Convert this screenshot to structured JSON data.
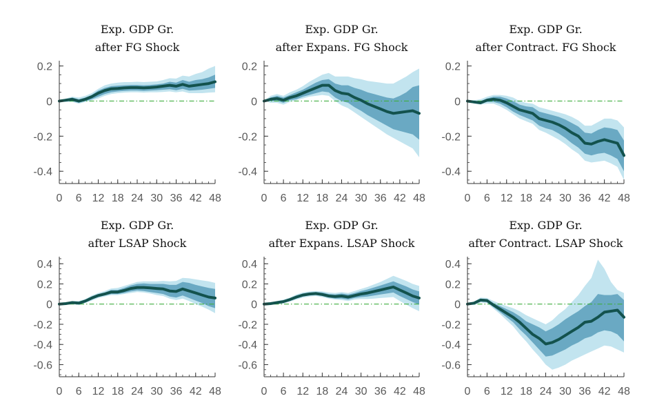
{
  "colors": {
    "outer_band": "#c2e4ef",
    "inner_band": "#6aa9c3",
    "median_line": "#13524d",
    "zero_line": "#3fae3f",
    "axis": "#333333",
    "tick_text": "#595959"
  },
  "chart_data": [
    {
      "type": "line",
      "title": [
        "Exp. GDP Gr.",
        "after FG Shock"
      ],
      "x": [
        0,
        2,
        4,
        6,
        8,
        10,
        12,
        14,
        16,
        18,
        20,
        22,
        24,
        26,
        28,
        30,
        32,
        34,
        36,
        38,
        40,
        42,
        44,
        46,
        48
      ],
      "median": [
        0,
        0.005,
        0.01,
        0,
        0.01,
        0.025,
        0.045,
        0.06,
        0.07,
        0.072,
        0.075,
        0.077,
        0.077,
        0.075,
        0.077,
        0.08,
        0.085,
        0.09,
        0.085,
        0.095,
        0.085,
        0.09,
        0.095,
        0.1,
        0.11
      ],
      "inner": {
        "lo": [
          0,
          0,
          0,
          -0.01,
          0,
          0.01,
          0.025,
          0.04,
          0.05,
          0.055,
          0.058,
          0.06,
          0.06,
          0.058,
          0.06,
          0.062,
          0.065,
          0.068,
          0.062,
          0.07,
          0.06,
          0.062,
          0.065,
          0.07,
          0.075
        ],
        "hi": [
          0,
          0.01,
          0.02,
          0.01,
          0.02,
          0.035,
          0.06,
          0.075,
          0.085,
          0.088,
          0.09,
          0.092,
          0.092,
          0.09,
          0.092,
          0.095,
          0.1,
          0.11,
          0.105,
          0.12,
          0.11,
          0.12,
          0.125,
          0.135,
          0.15
        ]
      },
      "outer": {
        "lo": [
          0,
          -0.005,
          -0.005,
          -0.015,
          -0.005,
          0.005,
          0.015,
          0.03,
          0.04,
          0.045,
          0.048,
          0.05,
          0.05,
          0.048,
          0.05,
          0.05,
          0.052,
          0.055,
          0.05,
          0.055,
          0.045,
          0.045,
          0.045,
          0.048,
          0.05
        ],
        "hi": [
          0,
          0.015,
          0.025,
          0.02,
          0.03,
          0.045,
          0.07,
          0.09,
          0.1,
          0.105,
          0.108,
          0.108,
          0.11,
          0.108,
          0.11,
          0.112,
          0.12,
          0.13,
          0.128,
          0.145,
          0.14,
          0.155,
          0.165,
          0.185,
          0.2
        ]
      },
      "ylim": [
        -0.47,
        0.23
      ],
      "yticks": [
        0.2,
        0,
        -0.2,
        -0.4
      ],
      "ytick_labels": [
        "0.2",
        "0",
        "-0.2",
        "-0.4"
      ],
      "yminor_step": 0.05,
      "xlim": [
        0,
        48
      ],
      "xticks": [
        0,
        6,
        12,
        18,
        24,
        30,
        36,
        42,
        48
      ],
      "xtick_labels": [
        "0",
        "6",
        "12",
        "18",
        "24",
        "30",
        "36",
        "42",
        "48"
      ]
    },
    {
      "type": "line",
      "title": [
        "Exp. GDP Gr.",
        "after Expans. FG Shock"
      ],
      "x": [
        0,
        2,
        4,
        6,
        8,
        10,
        12,
        14,
        16,
        18,
        20,
        22,
        24,
        26,
        28,
        30,
        32,
        34,
        36,
        38,
        40,
        42,
        44,
        46,
        48
      ],
      "median": [
        0,
        0.01,
        0.015,
        0.005,
        0.02,
        0.03,
        0.045,
        0.06,
        0.075,
        0.09,
        0.09,
        0.06,
        0.045,
        0.04,
        0.02,
        0.005,
        -0.015,
        -0.03,
        -0.045,
        -0.06,
        -0.07,
        -0.065,
        -0.06,
        -0.055,
        -0.07
      ],
      "inner": {
        "lo": [
          0,
          0,
          0,
          -0.01,
          0.005,
          0.01,
          0.025,
          0.035,
          0.045,
          0.055,
          0.05,
          0.02,
          0,
          -0.01,
          -0.035,
          -0.055,
          -0.08,
          -0.1,
          -0.12,
          -0.14,
          -0.16,
          -0.17,
          -0.18,
          -0.19,
          -0.22
        ],
        "hi": [
          0,
          0.02,
          0.03,
          0.02,
          0.035,
          0.05,
          0.065,
          0.085,
          0.105,
          0.12,
          0.125,
          0.1,
          0.09,
          0.09,
          0.075,
          0.065,
          0.05,
          0.04,
          0.03,
          0.02,
          0.015,
          0.03,
          0.05,
          0.08,
          0.09
        ]
      },
      "outer": {
        "lo": [
          0,
          -0.01,
          -0.01,
          -0.02,
          -0.005,
          0.005,
          0.015,
          0.025,
          0.03,
          0.035,
          0.03,
          0,
          -0.025,
          -0.04,
          -0.065,
          -0.09,
          -0.115,
          -0.14,
          -0.165,
          -0.19,
          -0.21,
          -0.23,
          -0.25,
          -0.27,
          -0.32
        ],
        "hi": [
          0,
          0.03,
          0.04,
          0.03,
          0.05,
          0.065,
          0.085,
          0.11,
          0.13,
          0.15,
          0.16,
          0.14,
          0.14,
          0.14,
          0.13,
          0.125,
          0.115,
          0.11,
          0.105,
          0.1,
          0.1,
          0.12,
          0.14,
          0.165,
          0.185
        ]
      },
      "ylim": [
        -0.47,
        0.23
      ],
      "yticks": [
        0.2,
        0,
        -0.2,
        -0.4
      ],
      "ytick_labels": [
        "0.2",
        "0",
        "-0.2",
        "-0.4"
      ],
      "yminor_step": 0.05,
      "xlim": [
        0,
        48
      ],
      "xticks": [
        0,
        6,
        12,
        18,
        24,
        30,
        36,
        42,
        48
      ],
      "xtick_labels": [
        "0",
        "6",
        "12",
        "18",
        "24",
        "30",
        "36",
        "42",
        "48"
      ]
    },
    {
      "type": "line",
      "title": [
        "Exp. GDP Gr.",
        "after Contract. FG Shock"
      ],
      "x": [
        0,
        2,
        4,
        6,
        8,
        10,
        12,
        14,
        16,
        18,
        20,
        22,
        24,
        26,
        28,
        30,
        32,
        34,
        36,
        38,
        40,
        42,
        44,
        46,
        48
      ],
      "median": [
        0,
        -0.005,
        -0.01,
        0.005,
        0.01,
        0.005,
        -0.01,
        -0.03,
        -0.05,
        -0.06,
        -0.07,
        -0.1,
        -0.11,
        -0.12,
        -0.135,
        -0.155,
        -0.18,
        -0.2,
        -0.24,
        -0.245,
        -0.23,
        -0.22,
        -0.23,
        -0.24,
        -0.31
      ],
      "inner": {
        "lo": [
          0,
          -0.01,
          -0.015,
          -0.005,
          -0.005,
          -0.015,
          -0.035,
          -0.06,
          -0.08,
          -0.095,
          -0.11,
          -0.14,
          -0.155,
          -0.165,
          -0.185,
          -0.21,
          -0.24,
          -0.265,
          -0.3,
          -0.31,
          -0.3,
          -0.295,
          -0.31,
          -0.33,
          -0.4
        ],
        "hi": [
          0,
          0,
          0,
          0.015,
          0.025,
          0.025,
          0.015,
          0,
          -0.02,
          -0.03,
          -0.035,
          -0.06,
          -0.07,
          -0.08,
          -0.09,
          -0.105,
          -0.125,
          -0.145,
          -0.18,
          -0.185,
          -0.165,
          -0.15,
          -0.155,
          -0.165,
          -0.225
        ]
      },
      "outer": {
        "lo": [
          0,
          -0.015,
          -0.02,
          -0.015,
          -0.015,
          -0.03,
          -0.05,
          -0.075,
          -0.1,
          -0.115,
          -0.13,
          -0.165,
          -0.18,
          -0.2,
          -0.22,
          -0.245,
          -0.275,
          -0.3,
          -0.34,
          -0.35,
          -0.345,
          -0.34,
          -0.355,
          -0.375,
          -0.45
        ],
        "hi": [
          0,
          0.005,
          0.01,
          0.025,
          0.035,
          0.035,
          0.03,
          0.02,
          0,
          -0.01,
          -0.015,
          -0.035,
          -0.045,
          -0.055,
          -0.065,
          -0.075,
          -0.09,
          -0.11,
          -0.14,
          -0.14,
          -0.12,
          -0.1,
          -0.1,
          -0.11,
          -0.15
        ]
      },
      "ylim": [
        -0.47,
        0.23
      ],
      "yticks": [
        0.2,
        0,
        -0.2,
        -0.4
      ],
      "ytick_labels": [
        "0.2",
        "0",
        "-0.2",
        "-0.4"
      ],
      "yminor_step": 0.05,
      "xlim": [
        0,
        48
      ],
      "xticks": [
        0,
        6,
        12,
        18,
        24,
        30,
        36,
        42,
        48
      ],
      "xtick_labels": [
        "0",
        "6",
        "12",
        "18",
        "24",
        "30",
        "36",
        "42",
        "48"
      ]
    },
    {
      "type": "line",
      "title": [
        "Exp. GDP Gr.",
        "after LSAP Shock"
      ],
      "x": [
        0,
        2,
        4,
        6,
        8,
        10,
        12,
        14,
        16,
        18,
        20,
        22,
        24,
        26,
        28,
        30,
        32,
        34,
        36,
        38,
        40,
        42,
        44,
        46,
        48
      ],
      "median": [
        0,
        0.005,
        0.015,
        0.01,
        0.03,
        0.06,
        0.085,
        0.1,
        0.12,
        0.12,
        0.135,
        0.155,
        0.165,
        0.165,
        0.16,
        0.155,
        0.15,
        0.13,
        0.125,
        0.15,
        0.13,
        0.11,
        0.09,
        0.07,
        0.06
      ],
      "inner": {
        "lo": [
          0,
          0,
          0.005,
          0,
          0.02,
          0.045,
          0.07,
          0.085,
          0.1,
          0.1,
          0.11,
          0.125,
          0.135,
          0.13,
          0.12,
          0.11,
          0.1,
          0.075,
          0.065,
          0.085,
          0.06,
          0.035,
          0.01,
          -0.02,
          -0.04
        ],
        "hi": [
          0,
          0.01,
          0.025,
          0.02,
          0.04,
          0.075,
          0.1,
          0.115,
          0.14,
          0.14,
          0.16,
          0.185,
          0.2,
          0.205,
          0.2,
          0.2,
          0.2,
          0.19,
          0.19,
          0.22,
          0.21,
          0.19,
          0.175,
          0.16,
          0.15
        ]
      },
      "outer": {
        "lo": [
          0,
          -0.005,
          0,
          -0.01,
          0.01,
          0.035,
          0.06,
          0.075,
          0.09,
          0.09,
          0.1,
          0.11,
          0.12,
          0.115,
          0.105,
          0.09,
          0.08,
          0.055,
          0.04,
          0.055,
          0.03,
          0,
          -0.025,
          -0.055,
          -0.09
        ],
        "hi": [
          0,
          0.015,
          0.03,
          0.03,
          0.05,
          0.085,
          0.11,
          0.13,
          0.155,
          0.16,
          0.18,
          0.2,
          0.22,
          0.225,
          0.225,
          0.225,
          0.23,
          0.225,
          0.23,
          0.26,
          0.255,
          0.245,
          0.235,
          0.225,
          0.21
        ]
      },
      "ylim": [
        -0.72,
        0.47
      ],
      "yticks": [
        0.4,
        0.2,
        0,
        -0.2,
        -0.4,
        -0.6
      ],
      "ytick_labels": [
        "0.4",
        "0.2",
        "0",
        "-0.2",
        "-0.4",
        "-0.6"
      ],
      "yminor_step": 0.05,
      "xlim": [
        0,
        48
      ],
      "xticks": [
        0,
        6,
        12,
        18,
        24,
        30,
        36,
        42,
        48
      ],
      "xtick_labels": [
        "0",
        "6",
        "12",
        "18",
        "24",
        "30",
        "36",
        "42",
        "48"
      ]
    },
    {
      "type": "line",
      "title": [
        "Exp. GDP Gr.",
        "after Expans. LSAP Shock"
      ],
      "x": [
        0,
        2,
        4,
        6,
        8,
        10,
        12,
        14,
        16,
        18,
        20,
        22,
        24,
        26,
        28,
        30,
        32,
        34,
        36,
        38,
        40,
        42,
        44,
        46,
        48
      ],
      "median": [
        0,
        0.005,
        0.015,
        0.025,
        0.045,
        0.07,
        0.09,
        0.1,
        0.105,
        0.095,
        0.08,
        0.075,
        0.08,
        0.07,
        0.085,
        0.1,
        0.11,
        0.125,
        0.14,
        0.155,
        0.17,
        0.14,
        0.11,
        0.08,
        0.06
      ],
      "inner": {
        "lo": [
          0,
          0,
          0.005,
          0.015,
          0.035,
          0.055,
          0.075,
          0.085,
          0.09,
          0.08,
          0.065,
          0.055,
          0.055,
          0.045,
          0.06,
          0.07,
          0.075,
          0.085,
          0.095,
          0.105,
          0.115,
          0.08,
          0.05,
          0.02,
          -0.005
        ],
        "hi": [
          0,
          0.01,
          0.025,
          0.035,
          0.055,
          0.085,
          0.105,
          0.115,
          0.12,
          0.115,
          0.1,
          0.095,
          0.105,
          0.095,
          0.11,
          0.13,
          0.145,
          0.165,
          0.185,
          0.205,
          0.225,
          0.2,
          0.175,
          0.145,
          0.125
        ]
      },
      "outer": {
        "lo": [
          0,
          -0.005,
          0,
          0.005,
          0.025,
          0.045,
          0.065,
          0.075,
          0.08,
          0.07,
          0.055,
          0.045,
          0.04,
          0.03,
          0.045,
          0.05,
          0.05,
          0.055,
          0.06,
          0.065,
          0.07,
          0.03,
          -0.005,
          -0.04,
          -0.07
        ],
        "hi": [
          0,
          0.015,
          0.03,
          0.045,
          0.065,
          0.095,
          0.115,
          0.125,
          0.13,
          0.125,
          0.115,
          0.11,
          0.12,
          0.11,
          0.13,
          0.15,
          0.17,
          0.195,
          0.22,
          0.25,
          0.28,
          0.255,
          0.23,
          0.2,
          0.18
        ]
      },
      "ylim": [
        -0.72,
        0.47
      ],
      "yticks": [
        0.4,
        0.2,
        0,
        -0.2,
        -0.4,
        -0.6
      ],
      "ytick_labels": [
        "0.4",
        "0.2",
        "0",
        "-0.2",
        "-0.4",
        "-0.6"
      ],
      "yminor_step": 0.05,
      "xlim": [
        0,
        48
      ],
      "xticks": [
        0,
        6,
        12,
        18,
        24,
        30,
        36,
        42,
        48
      ],
      "xtick_labels": [
        "0",
        "6",
        "12",
        "18",
        "24",
        "30",
        "36",
        "42",
        "48"
      ]
    },
    {
      "type": "line",
      "title": [
        "Exp. GDP Gr.",
        "after Contract. LSAP Shock"
      ],
      "x": [
        0,
        2,
        4,
        6,
        8,
        10,
        12,
        14,
        16,
        18,
        20,
        22,
        24,
        26,
        28,
        30,
        32,
        34,
        36,
        38,
        40,
        42,
        44,
        46,
        48
      ],
      "median": [
        0,
        0.01,
        0.04,
        0.035,
        -0.01,
        -0.05,
        -0.09,
        -0.13,
        -0.18,
        -0.24,
        -0.3,
        -0.34,
        -0.395,
        -0.38,
        -0.35,
        -0.31,
        -0.27,
        -0.23,
        -0.18,
        -0.17,
        -0.13,
        -0.08,
        -0.07,
        -0.06,
        -0.13
      ],
      "inner": {
        "lo": [
          0,
          0,
          0.025,
          0.02,
          -0.03,
          -0.08,
          -0.13,
          -0.18,
          -0.25,
          -0.31,
          -0.38,
          -0.45,
          -0.52,
          -0.51,
          -0.48,
          -0.45,
          -0.41,
          -0.38,
          -0.34,
          -0.32,
          -0.28,
          -0.26,
          -0.27,
          -0.3,
          -0.37
        ],
        "hi": [
          0,
          0.02,
          0.055,
          0.05,
          0.01,
          -0.02,
          -0.05,
          -0.08,
          -0.12,
          -0.17,
          -0.2,
          -0.23,
          -0.27,
          -0.24,
          -0.2,
          -0.15,
          -0.11,
          -0.07,
          -0.02,
          0.02,
          0.1,
          0.09,
          0.09,
          0.1,
          0.04
        ]
      },
      "outer": {
        "lo": [
          0,
          -0.01,
          0.015,
          0.01,
          -0.045,
          -0.1,
          -0.16,
          -0.22,
          -0.3,
          -0.37,
          -0.45,
          -0.52,
          -0.6,
          -0.65,
          -0.63,
          -0.6,
          -0.56,
          -0.53,
          -0.5,
          -0.47,
          -0.44,
          -0.41,
          -0.42,
          -0.45,
          -0.48
        ],
        "hi": [
          0,
          0.025,
          0.065,
          0.06,
          0.03,
          0.005,
          -0.02,
          -0.04,
          -0.07,
          -0.11,
          -0.14,
          -0.17,
          -0.2,
          -0.16,
          -0.1,
          -0.05,
          0.02,
          0.09,
          0.18,
          0.26,
          0.44,
          0.35,
          0.22,
          0.14,
          0.11
        ]
      },
      "ylim": [
        -0.72,
        0.47
      ],
      "yticks": [
        0.4,
        0.2,
        0,
        -0.2,
        -0.4,
        -0.6
      ],
      "ytick_labels": [
        "0.4",
        "0.2",
        "0",
        "-0.2",
        "-0.4",
        "-0.6"
      ],
      "yminor_step": 0.05,
      "xlim": [
        0,
        48
      ],
      "xticks": [
        0,
        6,
        12,
        18,
        24,
        30,
        36,
        42,
        48
      ],
      "xtick_labels": [
        "0",
        "6",
        "12",
        "18",
        "24",
        "30",
        "36",
        "42",
        "48"
      ]
    }
  ]
}
